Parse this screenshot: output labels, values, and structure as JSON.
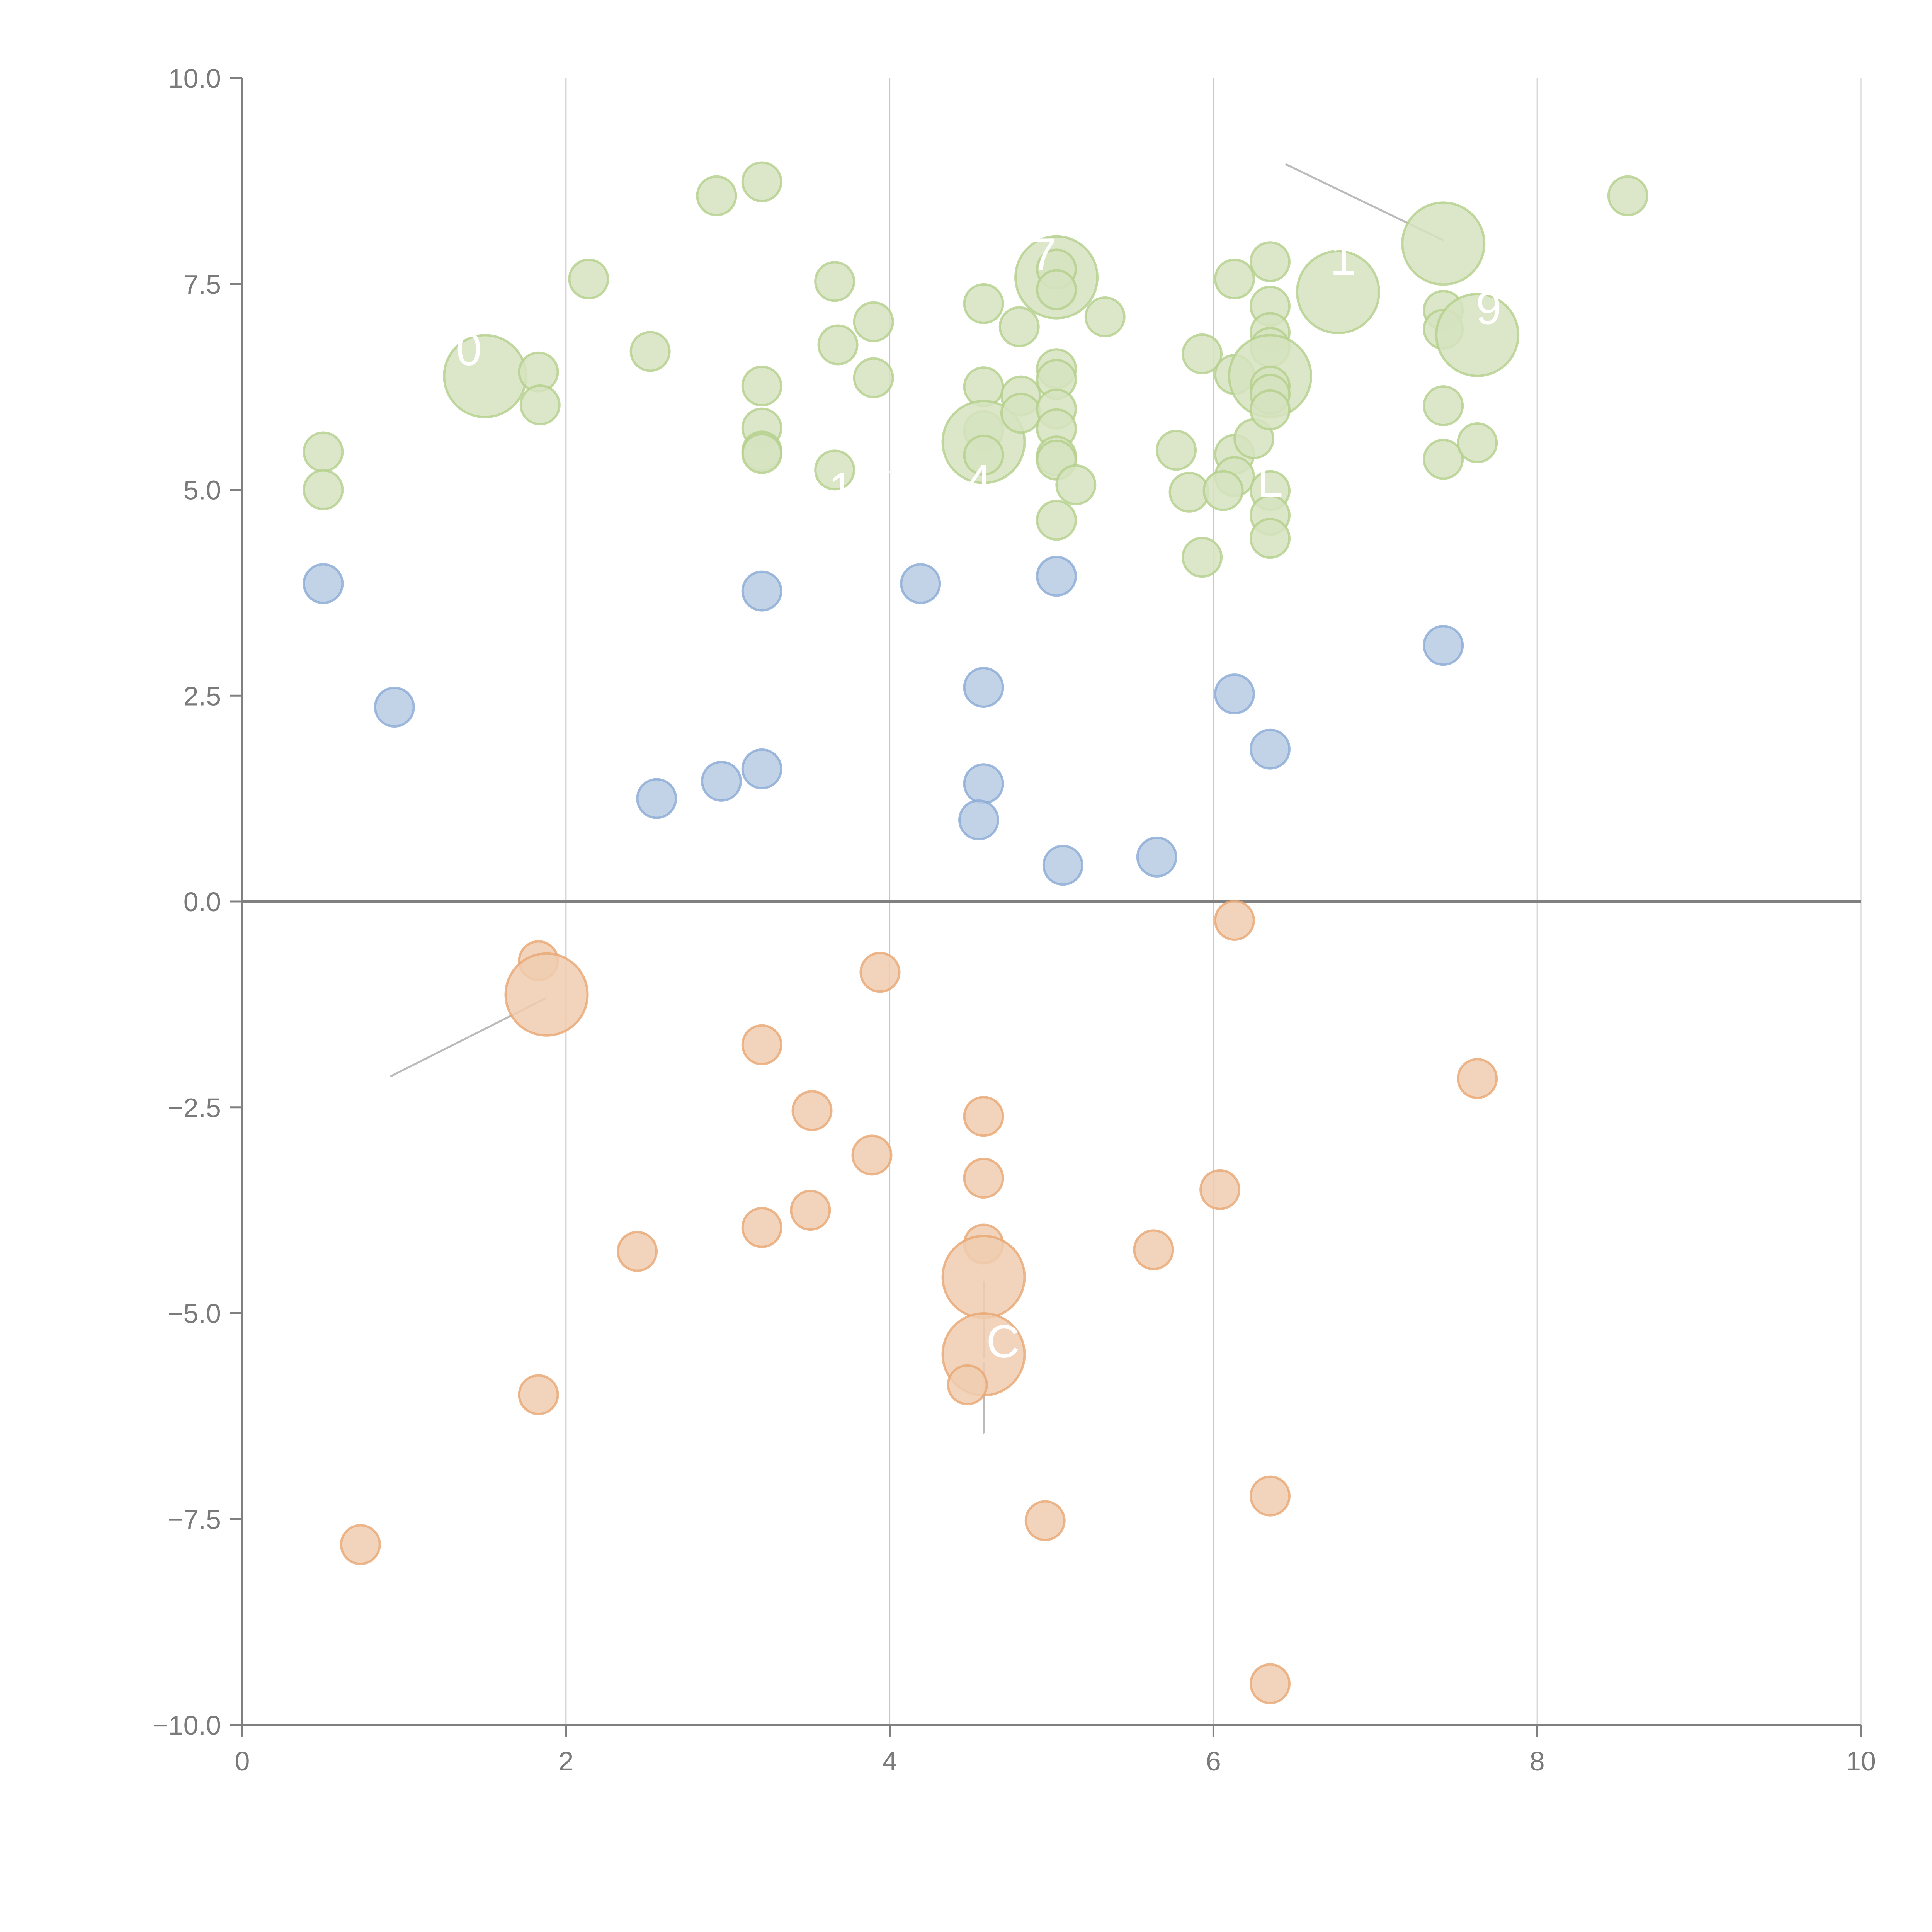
{
  "chart_data": {
    "type": "scatter",
    "title": "",
    "xlabel": "",
    "ylabel": "",
    "xlim": [
      0,
      10
    ],
    "ylim": [
      -10,
      10
    ],
    "x_ticks": [
      0,
      2,
      4,
      6,
      8,
      10
    ],
    "x_tick_labels": [
      "0",
      "2",
      "4",
      "6",
      "8",
      "10"
    ],
    "y_ticks": [
      10,
      7.5,
      5,
      2.5,
      0,
      -2.5,
      -5,
      -7.5,
      -10
    ],
    "y_tick_labels": [
      "10.0",
      "7.5",
      "5.0",
      "2.5",
      "0.0",
      "−2.5",
      "−5.0",
      "−7.5",
      "−10.0"
    ],
    "grid": "vertical",
    "zero_line": true,
    "legend": "none",
    "colors": {
      "blue_fill": "#b9cbe3",
      "blue_stroke": "#8aaad6",
      "green_fill": "#d6e3bf",
      "green_stroke": "#b4cf8b",
      "orange_fill": "#f0cdb0",
      "orange_stroke": "#e8a672",
      "axis": "#808080",
      "grid": "#c8c8c8",
      "leader": "#bbbbbb"
    },
    "series": [
      {
        "name": "blue",
        "points": [
          {
            "x": 0.5,
            "y": 3.86,
            "size": 1
          },
          {
            "x": 0.94,
            "y": 2.36,
            "size": 1
          },
          {
            "x": 2.56,
            "y": 1.25,
            "size": 1
          },
          {
            "x": 2.96,
            "y": 1.46,
            "size": 1
          },
          {
            "x": 3.21,
            "y": 3.77,
            "size": 1
          },
          {
            "x": 3.21,
            "y": 1.61,
            "size": 1
          },
          {
            "x": 4.19,
            "y": 3.86,
            "size": 1
          },
          {
            "x": 4.58,
            "y": 2.6,
            "size": 1
          },
          {
            "x": 4.58,
            "y": 1.43,
            "size": 1
          },
          {
            "x": 4.55,
            "y": 0.99,
            "size": 1
          },
          {
            "x": 5.03,
            "y": 3.95,
            "size": 1
          },
          {
            "x": 5.07,
            "y": 0.44,
            "size": 1
          },
          {
            "x": 5.65,
            "y": 0.54,
            "size": 1
          },
          {
            "x": 6.13,
            "y": 2.52,
            "size": 1
          },
          {
            "x": 6.35,
            "y": 1.85,
            "size": 1
          },
          {
            "x": 7.42,
            "y": 3.11,
            "size": 1
          }
        ]
      },
      {
        "name": "green",
        "points": [
          {
            "x": 0.5,
            "y": 5.46,
            "size": 1
          },
          {
            "x": 0.5,
            "y": 5.0,
            "size": 1
          },
          {
            "x": 1.5,
            "y": 6.38,
            "size": 2
          },
          {
            "x": 1.83,
            "y": 6.43,
            "size": 1
          },
          {
            "x": 1.84,
            "y": 6.03,
            "size": 1
          },
          {
            "x": 2.14,
            "y": 7.56,
            "size": 1
          },
          {
            "x": 2.52,
            "y": 6.68,
            "size": 1
          },
          {
            "x": 2.93,
            "y": 8.57,
            "size": 1
          },
          {
            "x": 3.21,
            "y": 8.74,
            "size": 1
          },
          {
            "x": 3.21,
            "y": 6.26,
            "size": 1
          },
          {
            "x": 3.21,
            "y": 5.75,
            "size": 1
          },
          {
            "x": 3.21,
            "y": 5.47,
            "size": 1
          },
          {
            "x": 3.21,
            "y": 5.44,
            "size": 1
          },
          {
            "x": 3.66,
            "y": 7.53,
            "size": 1
          },
          {
            "x": 3.68,
            "y": 6.76,
            "size": 1
          },
          {
            "x": 3.66,
            "y": 5.24,
            "size": 1
          },
          {
            "x": 3.9,
            "y": 7.04,
            "size": 1
          },
          {
            "x": 3.9,
            "y": 6.36,
            "size": 1
          },
          {
            "x": 4.58,
            "y": 7.26,
            "size": 1
          },
          {
            "x": 4.58,
            "y": 6.25,
            "size": 1
          },
          {
            "x": 4.58,
            "y": 5.72,
            "size": 1
          },
          {
            "x": 4.58,
            "y": 5.58,
            "size": 2
          },
          {
            "x": 4.58,
            "y": 5.42,
            "size": 1
          },
          {
            "x": 4.8,
            "y": 6.98,
            "size": 1
          },
          {
            "x": 4.81,
            "y": 6.14,
            "size": 1
          },
          {
            "x": 4.81,
            "y": 5.93,
            "size": 1
          },
          {
            "x": 5.03,
            "y": 7.58,
            "size": 2
          },
          {
            "x": 5.03,
            "y": 7.68,
            "size": 1
          },
          {
            "x": 5.03,
            "y": 7.43,
            "size": 1
          },
          {
            "x": 5.03,
            "y": 6.47,
            "size": 1
          },
          {
            "x": 5.03,
            "y": 6.34,
            "size": 1
          },
          {
            "x": 5.03,
            "y": 5.98,
            "size": 1
          },
          {
            "x": 5.03,
            "y": 5.74,
            "size": 1
          },
          {
            "x": 5.03,
            "y": 5.41,
            "size": 1
          },
          {
            "x": 5.03,
            "y": 5.36,
            "size": 1
          },
          {
            "x": 5.15,
            "y": 5.06,
            "size": 1
          },
          {
            "x": 5.03,
            "y": 4.63,
            "size": 1
          },
          {
            "x": 5.33,
            "y": 7.1,
            "size": 1
          },
          {
            "x": 5.77,
            "y": 5.48,
            "size": 1
          },
          {
            "x": 5.85,
            "y": 4.97,
            "size": 1
          },
          {
            "x": 5.93,
            "y": 6.65,
            "size": 1
          },
          {
            "x": 5.93,
            "y": 4.18,
            "size": 1
          },
          {
            "x": 6.13,
            "y": 7.56,
            "size": 1
          },
          {
            "x": 6.13,
            "y": 6.4,
            "size": 1
          },
          {
            "x": 6.13,
            "y": 5.43,
            "size": 1
          },
          {
            "x": 6.13,
            "y": 5.16,
            "size": 1
          },
          {
            "x": 6.06,
            "y": 4.99,
            "size": 1
          },
          {
            "x": 6.25,
            "y": 5.62,
            "size": 1
          },
          {
            "x": 6.35,
            "y": 7.77,
            "size": 1
          },
          {
            "x": 6.35,
            "y": 7.23,
            "size": 1
          },
          {
            "x": 6.35,
            "y": 6.91,
            "size": 1
          },
          {
            "x": 6.35,
            "y": 6.73,
            "size": 1
          },
          {
            "x": 6.35,
            "y": 6.38,
            "size": 2
          },
          {
            "x": 6.35,
            "y": 6.26,
            "size": 1
          },
          {
            "x": 6.35,
            "y": 6.16,
            "size": 1
          },
          {
            "x": 6.35,
            "y": 5.97,
            "size": 1
          },
          {
            "x": 6.35,
            "y": 4.99,
            "size": 1
          },
          {
            "x": 6.35,
            "y": 4.69,
            "size": 1
          },
          {
            "x": 6.35,
            "y": 4.41,
            "size": 1
          },
          {
            "x": 6.77,
            "y": 7.4,
            "size": 2
          },
          {
            "x": 7.42,
            "y": 7.99,
            "size": 2
          },
          {
            "x": 7.42,
            "y": 7.18,
            "size": 1
          },
          {
            "x": 7.42,
            "y": 6.95,
            "size": 1
          },
          {
            "x": 7.42,
            "y": 6.02,
            "size": 1
          },
          {
            "x": 7.42,
            "y": 5.37,
            "size": 1
          },
          {
            "x": 7.63,
            "y": 6.88,
            "size": 2
          },
          {
            "x": 7.63,
            "y": 5.57,
            "size": 1
          },
          {
            "x": 8.56,
            "y": 8.57,
            "size": 1
          }
        ]
      },
      {
        "name": "orange",
        "points": [
          {
            "x": 1.83,
            "y": -0.72,
            "size": 1
          },
          {
            "x": 1.88,
            "y": -1.13,
            "size": 2
          },
          {
            "x": 3.94,
            "y": -0.86,
            "size": 1
          },
          {
            "x": 6.13,
            "y": -0.23,
            "size": 1
          },
          {
            "x": 3.21,
            "y": -1.74,
            "size": 1
          },
          {
            "x": 3.52,
            "y": -2.54,
            "size": 1
          },
          {
            "x": 4.58,
            "y": -2.61,
            "size": 1
          },
          {
            "x": 3.89,
            "y": -3.08,
            "size": 1
          },
          {
            "x": 4.58,
            "y": -3.36,
            "size": 1
          },
          {
            "x": 6.04,
            "y": -3.5,
            "size": 1
          },
          {
            "x": 3.51,
            "y": -3.75,
            "size": 1
          },
          {
            "x": 3.21,
            "y": -3.96,
            "size": 1
          },
          {
            "x": 2.44,
            "y": -4.25,
            "size": 1
          },
          {
            "x": 4.58,
            "y": -4.16,
            "size": 1
          },
          {
            "x": 5.63,
            "y": -4.23,
            "size": 1
          },
          {
            "x": 4.58,
            "y": -4.56,
            "size": 2
          },
          {
            "x": 4.58,
            "y": -5.5,
            "size": 2
          },
          {
            "x": 4.48,
            "y": -5.87,
            "size": 1
          },
          {
            "x": 1.83,
            "y": -5.99,
            "size": 1
          },
          {
            "x": 7.63,
            "y": -2.15,
            "size": 1
          },
          {
            "x": 4.96,
            "y": -7.52,
            "size": 1
          },
          {
            "x": 6.35,
            "y": -7.22,
            "size": 1
          },
          {
            "x": 0.73,
            "y": -7.81,
            "size": 1
          },
          {
            "x": 6.35,
            "y": -9.5,
            "size": 1
          }
        ]
      }
    ],
    "annotations": [
      {
        "text": "0",
        "x": 1.4,
        "y": 6.7,
        "target_x": 1.48,
        "target_y": 6.38,
        "leader": "light"
      },
      {
        "text": "1",
        "x": 3.7,
        "y": 5.0,
        "target_x": 4.53,
        "target_y": 5.6,
        "leader": "light"
      },
      {
        "text": "4",
        "x": 4.55,
        "y": 5.1,
        "target_x": 4.55,
        "target_y": 5.1,
        "leader": "none"
      },
      {
        "text": "7",
        "x": 4.95,
        "y": 7.85,
        "target_x": 4.95,
        "target_y": 7.7,
        "leader": "light"
      },
      {
        "text": "1",
        "x": 6.8,
        "y": 7.8,
        "target_x": 6.77,
        "target_y": 7.45,
        "leader": "light"
      },
      {
        "text": "9",
        "x": 7.7,
        "y": 7.2,
        "target_x": 7.55,
        "target_y": 6.95,
        "leader": "light"
      },
      {
        "text": "L",
        "x": 6.35,
        "y": 5.1,
        "target_x": 6.37,
        "target_y": 6.35,
        "leader": "light"
      },
      {
        "text": "",
        "x": 6.45,
        "y": 8.95,
        "target_x": 7.42,
        "target_y": 8.03,
        "leader": "dark"
      },
      {
        "text": "",
        "x": 0.92,
        "y": -2.12,
        "target_x": 1.87,
        "target_y": -1.18,
        "leader": "dark"
      },
      {
        "text": "C",
        "x": 4.7,
        "y": -5.35,
        "target_x": 4.58,
        "target_y": -4.62,
        "leader": "dark-split",
        "leader_end_y": -6.45
      }
    ]
  }
}
